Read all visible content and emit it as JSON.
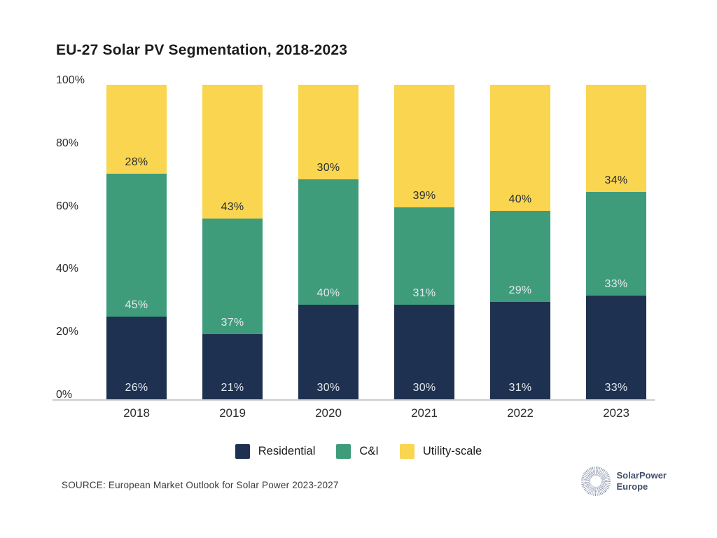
{
  "chart": {
    "title": "EU-27 Solar PV Segmentation, 2018-2023"
  },
  "chart_data": {
    "type": "bar",
    "stacked": true,
    "title": "EU-27 Solar PV Segmentation, 2018-2023",
    "categories": [
      "2018",
      "2019",
      "2020",
      "2021",
      "2022",
      "2023"
    ],
    "series": [
      {
        "name": "Residential",
        "color": "#1f3150",
        "label_color": "#e3e9ef",
        "values": [
          26,
          21,
          30,
          30,
          31,
          33
        ]
      },
      {
        "name": "C&I",
        "color": "#3f9c7a",
        "label_color": "#e3e9ef",
        "values": [
          45,
          37,
          40,
          31,
          29,
          33
        ]
      },
      {
        "name": "Utility-scale",
        "color": "#fad54f",
        "label_color": "#272e38",
        "values": [
          28,
          43,
          30,
          39,
          40,
          34
        ]
      }
    ],
    "value_suffix": "%",
    "xlabel": "",
    "ylabel": "",
    "y_ticks": [
      0,
      20,
      40,
      60,
      80,
      100
    ],
    "y_tick_suffix": "%",
    "ylim": [
      0,
      100
    ],
    "grid": false,
    "legend_position": "bottom"
  },
  "footer": {
    "source": "SOURCE: European Market Outlook for Solar Power 2023-2027",
    "logo_line1": "SolarPower",
    "logo_line2": "Europe"
  }
}
